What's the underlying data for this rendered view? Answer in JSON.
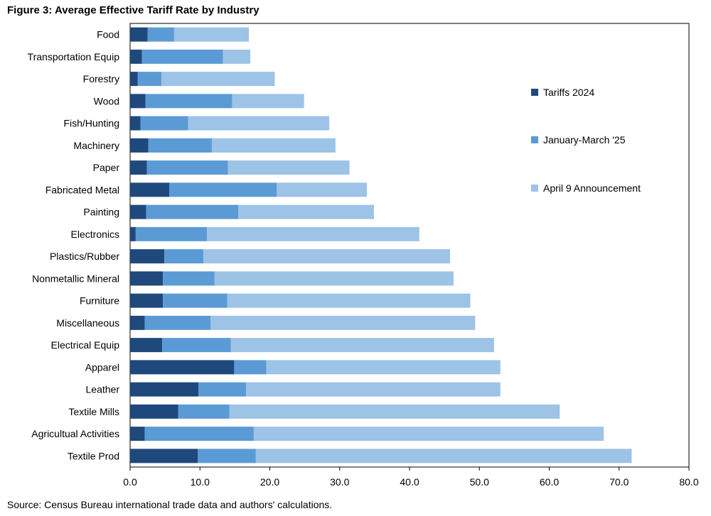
{
  "title": "Figure 3: Average Effective Tariff Rate by Industry",
  "source": "Source: Census Bureau international trade data and authors' calculations.",
  "chart_data": {
    "type": "bar",
    "orientation": "horizontal",
    "stacked": true,
    "title": "Figure 3: Average Effective Tariff Rate by Industry",
    "xlabel": "",
    "ylabel": "",
    "xlim": [
      0,
      80
    ],
    "xticks": [
      "0.0",
      "10.0",
      "20.0",
      "30.0",
      "40.0",
      "50.0",
      "60.0",
      "70.0",
      "80.0"
    ],
    "grid": false,
    "legend_position": "right",
    "categories": [
      "Food",
      "Transportation Equip",
      "Forestry",
      "Wood",
      "Fish/Hunting",
      "Machinery",
      "Paper",
      "Fabricated Metal",
      "Painting",
      "Electronics",
      "Plastics/Rubber",
      "Nonmetallic Mineral",
      "Furniture",
      "Miscellaneous",
      "Electrical Equip",
      "Apparel",
      "Leather",
      "Textile Mills",
      "Agricultual Activities",
      "Textile Prod"
    ],
    "series": [
      {
        "name": "Tariffs 2024",
        "color": "#1f497d",
        "values": [
          2.5,
          1.7,
          1.1,
          2.2,
          1.5,
          2.6,
          2.4,
          5.6,
          2.3,
          0.8,
          4.9,
          4.7,
          4.7,
          2.1,
          4.6,
          14.9,
          9.8,
          6.9,
          2.1,
          9.7
        ]
      },
      {
        "name": "January-March '25",
        "color": "#5b9bd5",
        "values": [
          3.8,
          11.6,
          3.4,
          12.4,
          6.8,
          9.1,
          11.6,
          15.4,
          13.2,
          10.2,
          5.6,
          7.4,
          9.2,
          9.4,
          9.8,
          4.6,
          6.8,
          7.3,
          15.6,
          8.3
        ]
      },
      {
        "name": "April 9 Announcement",
        "color": "#9dc3e6",
        "values": [
          10.7,
          3.9,
          16.2,
          10.3,
          20.2,
          17.7,
          17.4,
          12.9,
          19.4,
          30.4,
          35.3,
          34.2,
          34.8,
          37.9,
          37.7,
          33.5,
          36.4,
          47.3,
          50.1,
          53.8
        ]
      }
    ]
  }
}
